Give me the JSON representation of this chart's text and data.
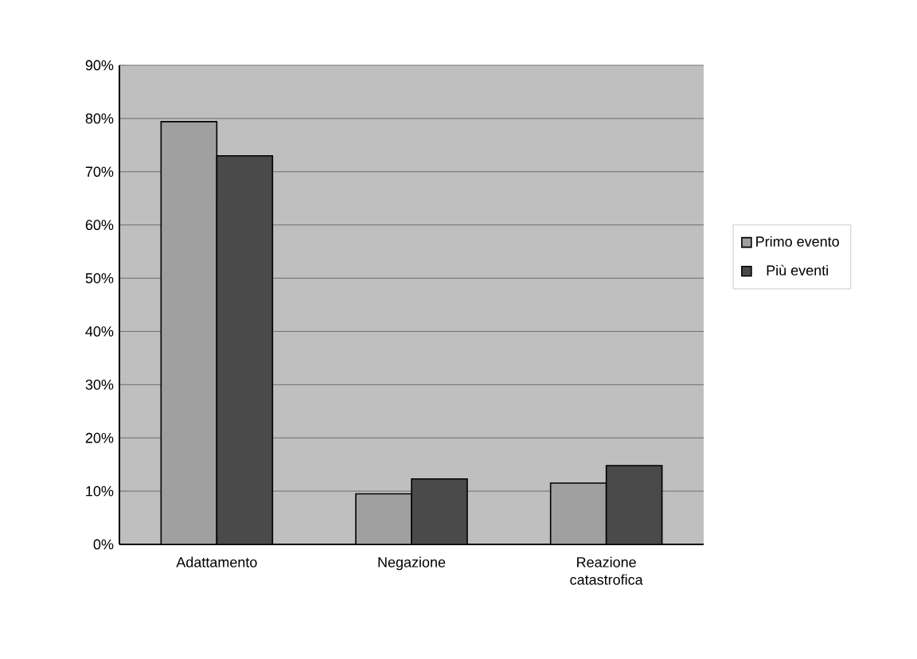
{
  "chart_data": {
    "type": "bar",
    "categories": [
      "Adattamento",
      "Negazione",
      "Reazione catastrofica"
    ],
    "series": [
      {
        "name": "Primo evento",
        "color": "#a0a0a0",
        "values": [
          79.4,
          9.5,
          11.5
        ]
      },
      {
        "name": "Più eventi",
        "color": "#4a4a4a",
        "values": [
          73,
          12.3,
          14.8
        ]
      }
    ],
    "ylim": [
      0,
      90
    ],
    "yticks": [
      {
        "value": 0,
        "label": "0%"
      },
      {
        "value": 10,
        "label": "10%"
      },
      {
        "value": 20,
        "label": "20%"
      },
      {
        "value": 30,
        "label": "30%"
      },
      {
        "value": 40,
        "label": "40%"
      },
      {
        "value": 50,
        "label": "50%"
      },
      {
        "value": 60,
        "label": "60%"
      },
      {
        "value": 70,
        "label": "70%"
      },
      {
        "value": 80,
        "label": "80%"
      },
      {
        "value": 90,
        "label": "90%"
      }
    ],
    "grid": "y",
    "legend": "right"
  }
}
